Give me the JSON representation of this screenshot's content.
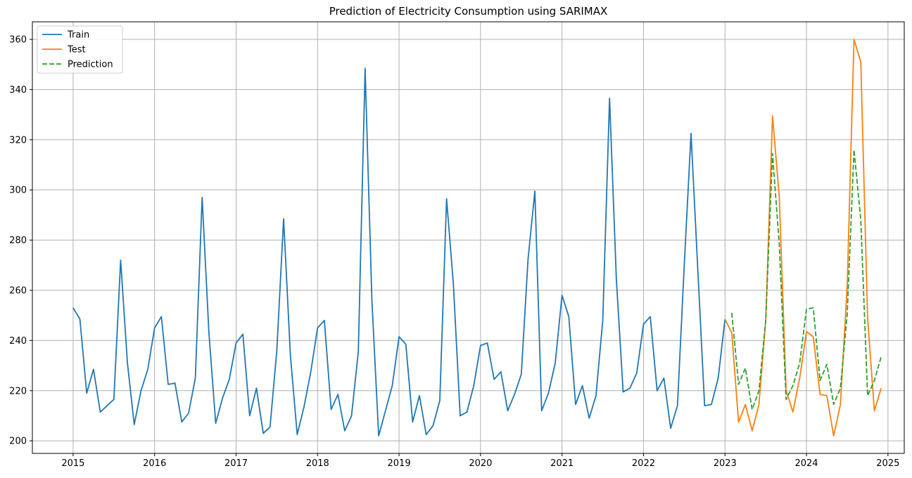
{
  "chart_data": {
    "type": "line",
    "title": "Prediction of Electricity Consumption using SARIMAX",
    "xlabel": "",
    "ylabel": "",
    "xlim": [
      2014.5,
      2025.2
    ],
    "ylim": [
      195,
      367
    ],
    "grid": true,
    "legend_position": "top-left",
    "x_ticks": [
      2015,
      2016,
      2017,
      2018,
      2019,
      2020,
      2021,
      2022,
      2023,
      2024,
      2025
    ],
    "y_ticks": [
      200,
      220,
      240,
      260,
      280,
      300,
      320,
      340,
      360
    ],
    "series": [
      {
        "name": "Train",
        "color": "#1f77b4",
        "dash": "solid",
        "start": "2015-01",
        "values": [
          253,
          248.5,
          219,
          228.5,
          211.5,
          214,
          216.5,
          272,
          231,
          206.5,
          220,
          228.5,
          245,
          249.5,
          222.5,
          223,
          207.5,
          211,
          225,
          297,
          243,
          207,
          217,
          224.5,
          239,
          242.5,
          210,
          221,
          203,
          205.5,
          236,
          288.5,
          234,
          202.5,
          213.5,
          227.5,
          245,
          248,
          212.5,
          218.5,
          204,
          210,
          235.5,
          348.5,
          256,
          202,
          212,
          222,
          241.5,
          238.5,
          207.5,
          218,
          202.5,
          206,
          216,
          296.5,
          262.5,
          210,
          211.5,
          222,
          238,
          239,
          224.5,
          227.5,
          212,
          218.5,
          226.5,
          272.5,
          299.5,
          212,
          219,
          231,
          258,
          249.5,
          214.5,
          222,
          209,
          218,
          248,
          336.5,
          264.5,
          219.5,
          221,
          227,
          246.5,
          249.5,
          220,
          225,
          205,
          214,
          270,
          322.5,
          268,
          214,
          214.5,
          225,
          248.5
        ]
      },
      {
        "name": "Test",
        "color": "#ff7f0e",
        "dash": "solid",
        "start": "2023-01",
        "values": [
          248.5,
          243,
          207.5,
          214.5,
          204,
          214.5,
          248,
          329.5,
          297,
          220,
          211.5,
          225,
          243.5,
          241.5,
          218.5,
          218,
          202,
          214.5,
          262,
          360,
          351,
          249,
          212,
          221
        ]
      },
      {
        "name": "Prediction",
        "color": "#2ca02c",
        "dash": "dashed",
        "start": "2023-02",
        "values": [
          251,
          222.5,
          229,
          212.5,
          220,
          248,
          314.5,
          278,
          216.5,
          222,
          231,
          252.5,
          253,
          224,
          230.5,
          214.5,
          221,
          250.5,
          316,
          288,
          218,
          224,
          233.5
        ]
      }
    ]
  }
}
